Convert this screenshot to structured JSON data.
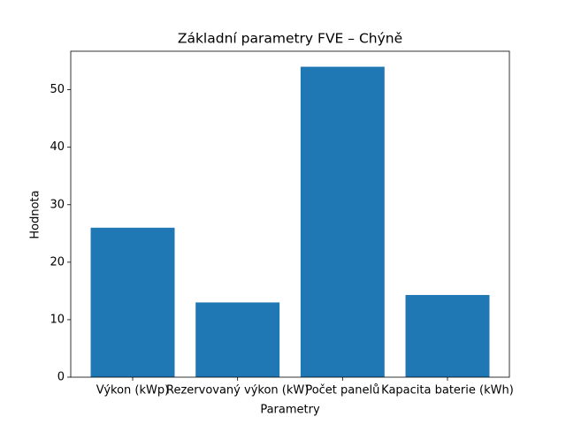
{
  "chart_data": {
    "type": "bar",
    "title": "Základní parametry FVE – Chýně",
    "x_label": "Parametry",
    "y_label": "Hodnota",
    "categories": [
      "Výkon (kWp)",
      "Rezervovaný výkon (kW)",
      "Počet panelů",
      "Kapacita baterie (kWh)"
    ],
    "values": [
      26,
      13,
      54,
      14.3
    ],
    "color": "#1f77b4",
    "ylim": [
      0,
      56.7
    ],
    "yticks": [
      0,
      10,
      20,
      30,
      40,
      50
    ],
    "grid": false
  }
}
